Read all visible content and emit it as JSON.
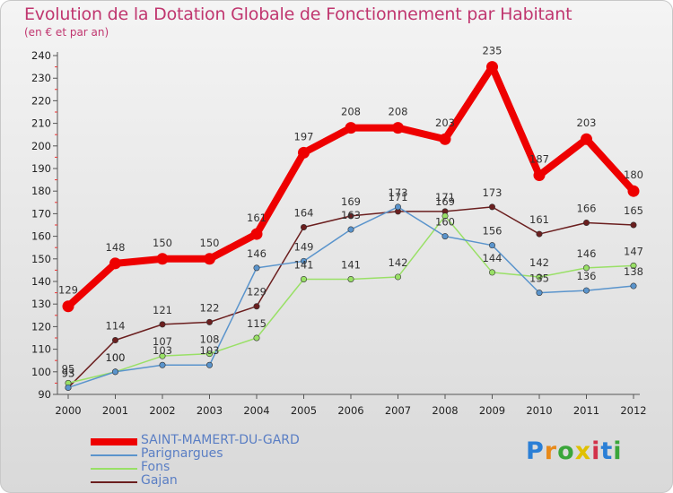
{
  "chart_data": {
    "type": "line",
    "title": "Evolution de la Dotation Globale de Fonctionnement par Habitant",
    "subtitle": "(en € et par an)",
    "xlabel": "",
    "ylabel": "",
    "categories": [
      "2000",
      "2001",
      "2002",
      "2003",
      "2004",
      "2005",
      "2006",
      "2007",
      "2008",
      "2009",
      "2010",
      "2011",
      "2012"
    ],
    "ylim": [
      90,
      240
    ],
    "yticks": [
      90,
      100,
      110,
      120,
      130,
      140,
      150,
      160,
      170,
      180,
      190,
      200,
      210,
      220,
      230,
      240
    ],
    "grid": false,
    "legend_position": "bottom-left",
    "series": [
      {
        "name": "SAINT-MAMERT-DU-GARD",
        "color": "#ee0000",
        "values": [
          129,
          148,
          150,
          150,
          161,
          197,
          208,
          208,
          203,
          235,
          187,
          203,
          180
        ]
      },
      {
        "name": "Parignargues",
        "color": "#5a94cc",
        "values": [
          93,
          100,
          103,
          103,
          146,
          149,
          163,
          173,
          160,
          156,
          135,
          136,
          138
        ]
      },
      {
        "name": "Fons",
        "color": "#99e066",
        "values": [
          95,
          100,
          107,
          108,
          115,
          141,
          141,
          142,
          169,
          144,
          142,
          146,
          147
        ]
      },
      {
        "name": "Gajan",
        "color": "#6b1f1f",
        "values": [
          93,
          114,
          121,
          122,
          129,
          164,
          169,
          171,
          171,
          173,
          161,
          166,
          165
        ]
      }
    ]
  },
  "brand": {
    "name": "Proxiti",
    "letters": [
      "P",
      "r",
      "o",
      "x",
      "i",
      "t",
      "i"
    ],
    "colors": [
      "#2b7fd6",
      "#e88a1a",
      "#3aa63a",
      "#e0c000",
      "#d2324a",
      "#2b7fd6",
      "#3aa63a"
    ]
  }
}
